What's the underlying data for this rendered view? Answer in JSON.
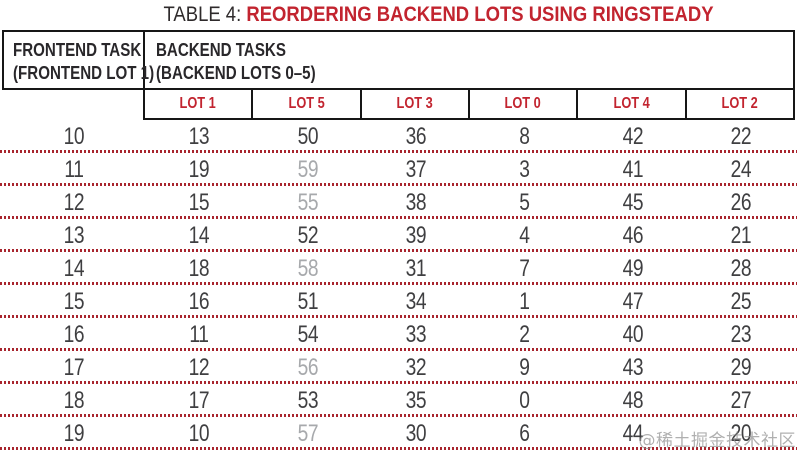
{
  "title": {
    "prefix": "TABLE 4: ",
    "highlight": "REORDERING BACKEND LOTS USING RINGSTEADY"
  },
  "table": {
    "frontend_header": {
      "line1": "FRONTEND TASK",
      "line2": "(FRONTEND LOT 1)"
    },
    "backend_header": {
      "line1": "BACKEND TASKS",
      "line2": "(BACKEND LOTS 0–5)"
    },
    "lot_columns": [
      "LOT 1",
      "LOT 5",
      "LOT 3",
      "LOT 0",
      "LOT 4",
      "LOT 2"
    ],
    "rows": [
      [
        "10",
        "13",
        "50",
        "36",
        "8",
        "42",
        "22"
      ],
      [
        "11",
        "19",
        "59",
        "37",
        "3",
        "41",
        "24"
      ],
      [
        "12",
        "15",
        "55",
        "38",
        "5",
        "45",
        "26"
      ],
      [
        "13",
        "14",
        "52",
        "39",
        "4",
        "46",
        "21"
      ],
      [
        "14",
        "18",
        "58",
        "31",
        "7",
        "49",
        "28"
      ],
      [
        "15",
        "16",
        "51",
        "34",
        "1",
        "47",
        "25"
      ],
      [
        "16",
        "11",
        "54",
        "33",
        "2",
        "40",
        "23"
      ],
      [
        "17",
        "12",
        "56",
        "32",
        "9",
        "43",
        "29"
      ],
      [
        "18",
        "17",
        "53",
        "35",
        "0",
        "48",
        "27"
      ],
      [
        "19",
        "10",
        "57",
        "30",
        "6",
        "44",
        "20"
      ]
    ],
    "grayed_cells": [
      [
        1,
        2
      ],
      [
        2,
        2
      ],
      [
        4,
        2
      ],
      [
        7,
        2
      ],
      [
        9,
        2
      ]
    ]
  },
  "watermark": "@稀土掘金技术社区",
  "colors": {
    "accent_red": "#C2242F",
    "dotted_line_red": "#A8252E",
    "text_dark": "#3F3F41",
    "muted_gray": "#A7A9AC",
    "border_black": "#161616"
  },
  "chart_data": {
    "type": "table",
    "title": "TABLE 4: REORDERING BACKEND LOTS USING RINGSTEADY",
    "columns": [
      "FRONTEND TASK (FRONTEND LOT 1)",
      "LOT 1",
      "LOT 5",
      "LOT 3",
      "LOT 0",
      "LOT 4",
      "LOT 2"
    ],
    "rows": [
      [
        10,
        13,
        50,
        36,
        8,
        42,
        22
      ],
      [
        11,
        19,
        59,
        37,
        3,
        41,
        24
      ],
      [
        12,
        15,
        55,
        38,
        5,
        45,
        26
      ],
      [
        13,
        14,
        52,
        39,
        4,
        46,
        21
      ],
      [
        14,
        18,
        58,
        31,
        7,
        49,
        28
      ],
      [
        15,
        16,
        51,
        34,
        1,
        47,
        25
      ],
      [
        16,
        11,
        54,
        33,
        2,
        40,
        23
      ],
      [
        17,
        12,
        56,
        32,
        9,
        43,
        29
      ],
      [
        18,
        17,
        53,
        35,
        0,
        48,
        27
      ],
      [
        19,
        10,
        57,
        30,
        6,
        44,
        20
      ]
    ]
  }
}
